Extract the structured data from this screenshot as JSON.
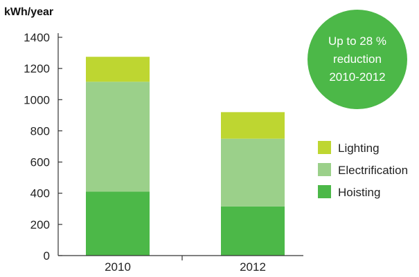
{
  "chart_data": {
    "type": "bar",
    "stacked": true,
    "title": "",
    "xlabel": "",
    "ylabel": "kWh/year",
    "ylim": [
      0,
      1400
    ],
    "yticks": [
      0,
      200,
      400,
      600,
      800,
      1000,
      1200,
      1400
    ],
    "categories": [
      "2010",
      "2012"
    ],
    "series": [
      {
        "name": "Hoisting",
        "color": "#4cb848",
        "values": [
          410,
          315
        ]
      },
      {
        "name": "Electrification",
        "color": "#9bd08a",
        "values": [
          705,
          435
        ]
      },
      {
        "name": "Lighting",
        "color": "#bed631",
        "values": [
          160,
          170
        ]
      }
    ],
    "legend_position": "right",
    "legend_order": [
      "Lighting",
      "Electrification",
      "Hoisting"
    ],
    "grid": false
  },
  "badge": {
    "lines": [
      "Up to 28 %",
      "reduction",
      "2010-2012"
    ],
    "color": "#4cb848"
  }
}
